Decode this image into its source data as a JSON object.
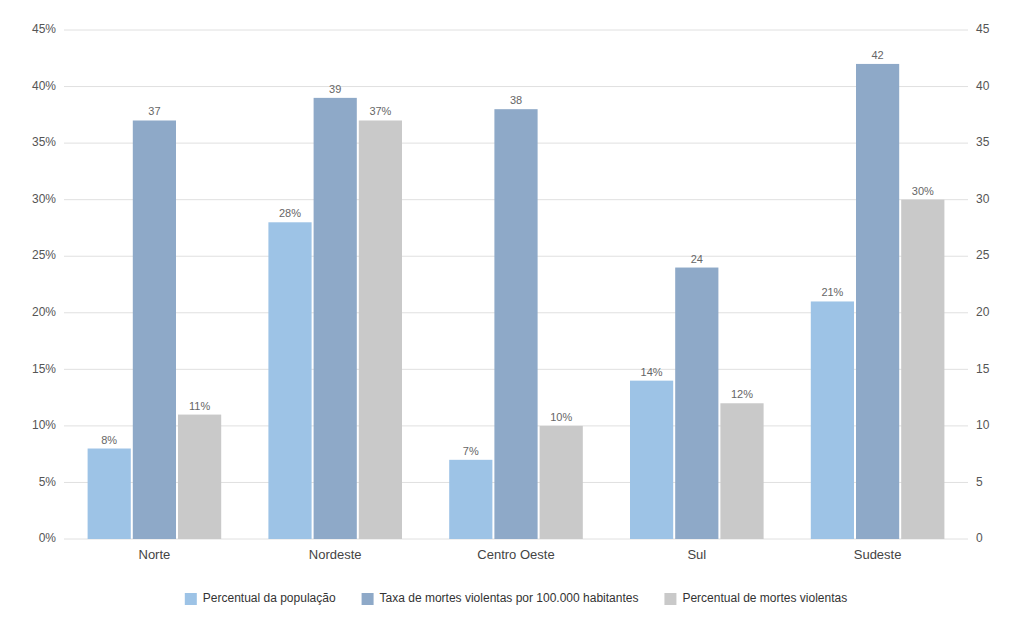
{
  "chart_data": {
    "type": "bar",
    "categories": [
      "Norte",
      "Nordeste",
      "Centro Oeste",
      "Sul",
      "Sudeste"
    ],
    "series": [
      {
        "name": "Percentual da população",
        "color": "#9DC3E6",
        "values": [
          8,
          28,
          7,
          14,
          21
        ],
        "value_labels": [
          "8%",
          "28%",
          "7%",
          "14%",
          "21%"
        ]
      },
      {
        "name": "Taxa de mortes violentas por 100.000 habitantes",
        "color": "#8EA9C8",
        "values": [
          37,
          39,
          38,
          24,
          42
        ],
        "axis": "y2"
      },
      {
        "name": "Percentual de mortes violentas",
        "color": "#C9C9C9",
        "values": [
          11,
          37,
          10,
          12,
          30
        ],
        "value_labels": [
          "11%",
          "37%",
          "10%",
          "12%",
          "30%"
        ]
      }
    ],
    "ylim": [
      0,
      45
    ],
    "yticks": [
      {
        "value": 0,
        "label": "0%"
      },
      {
        "value": 5,
        "label": "5%"
      },
      {
        "value": 10,
        "label": "10%"
      },
      {
        "value": 15,
        "label": "15%"
      },
      {
        "value": 20,
        "label": "20%"
      },
      {
        "value": 25,
        "label": "25%"
      },
      {
        "value": 30,
        "label": "30%"
      },
      {
        "value": 35,
        "label": "35%"
      },
      {
        "value": 40,
        "label": "40%"
      },
      {
        "value": 45,
        "label": "45%"
      }
    ],
    "y2lim": [
      0,
      45
    ],
    "y2ticks": [
      0,
      5,
      10,
      15,
      20,
      25,
      30,
      35,
      40,
      45
    ],
    "grid": true,
    "legend": "bottom",
    "data_labels": true
  }
}
